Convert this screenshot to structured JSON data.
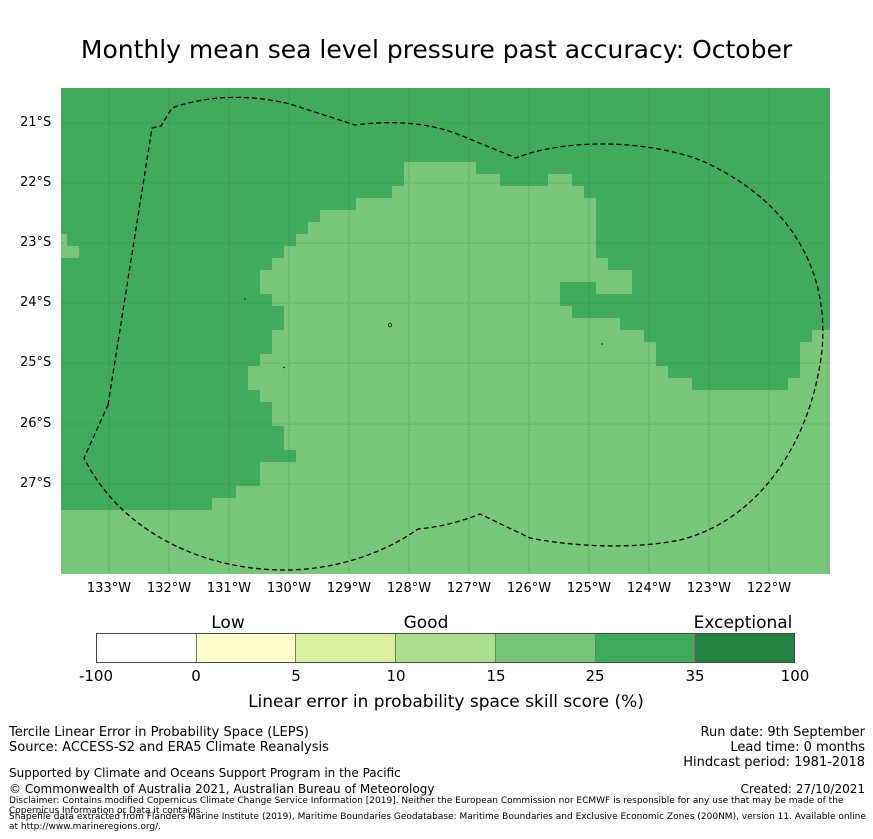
{
  "title": "Monthly mean sea level pressure past accuracy: October",
  "map": {
    "latitude_labels": [
      "21°S",
      "22°S",
      "23°S",
      "24°S",
      "25°S",
      "26°S",
      "27°S"
    ],
    "longitude_labels": [
      "133°W",
      "132°W",
      "131°W",
      "130°W",
      "129°W",
      "128°W",
      "127°W",
      "126°W",
      "125°W",
      "124°W",
      "123°W",
      "122°W"
    ],
    "colors": {
      "good_skill": "#78c679",
      "high_skill": "#41ab5d",
      "grid": "#2e6b39",
      "boundary": "#000000"
    },
    "boundary_style": "dashed",
    "grid": true
  },
  "colorbar": {
    "category_labels": [
      "Low",
      "Good",
      "Exceptional"
    ],
    "tick_labels": [
      "-100",
      "0",
      "5",
      "10",
      "15",
      "25",
      "35",
      "100"
    ],
    "colors": [
      "#ffffff",
      "#ffffcc",
      "#d9f0a3",
      "#addd8e",
      "#78c679",
      "#41ab5d",
      "#238443"
    ],
    "title": "Linear error in probability space skill score (%)"
  },
  "info": {
    "method": "Tercile Linear Error in Probability Space (LEPS)",
    "source": "Source: ACCESS-S2 and ERA5 Climate Reanalysis",
    "run_date": "Run date: 9th September",
    "lead_time": "Lead time: 0 months",
    "hindcast": "Hindcast period: 1981-2018",
    "supported": "Supported by Climate and Oceans Support Program in the Pacific",
    "copyright": "© Commonwealth of Australia 2021, Australian Bureau of Meteorology",
    "created": "Created: 27/10/2021",
    "disclaimer": "Disclaimer: Contains modified Copernicus Climate Change Service Information [2019]. Neither the European Commission nor ECMWF is responsible for any use that may be made of the Copernicus Information or Data it contains.",
    "shapefile": "Shapefile data extracted from Flanders Marine Institute (2019), Maritime Boundaries Geodatabase: Maritime Boundaries and Exclusive Economic Zones (200NM), version 11. Available online at http://www.marineregions.org/."
  }
}
